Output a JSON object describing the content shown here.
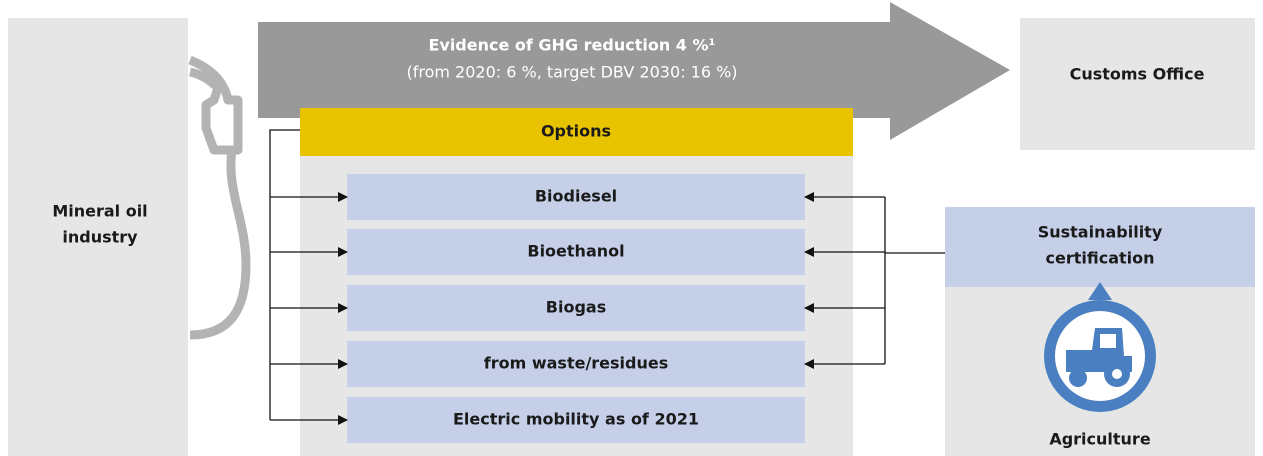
{
  "left_panel": {
    "lines": [
      "Mineral oil",
      "industry"
    ]
  },
  "arrow": {
    "title": "Evidence of GHG reduction 4 %¹",
    "subtitle": "(from 2020: 6 %, target DBV 2030: 16 %)"
  },
  "customs_office": {
    "label": "Customs Office"
  },
  "options": {
    "title": "Options",
    "items": [
      "Biodiesel",
      "Bioethanol",
      "Biogas",
      "from waste/residues",
      "Electric mobility as of 2021"
    ]
  },
  "certification": {
    "lines": [
      "Sustainability",
      "certification"
    ]
  },
  "agriculture": {
    "label": "Agriculture"
  }
}
